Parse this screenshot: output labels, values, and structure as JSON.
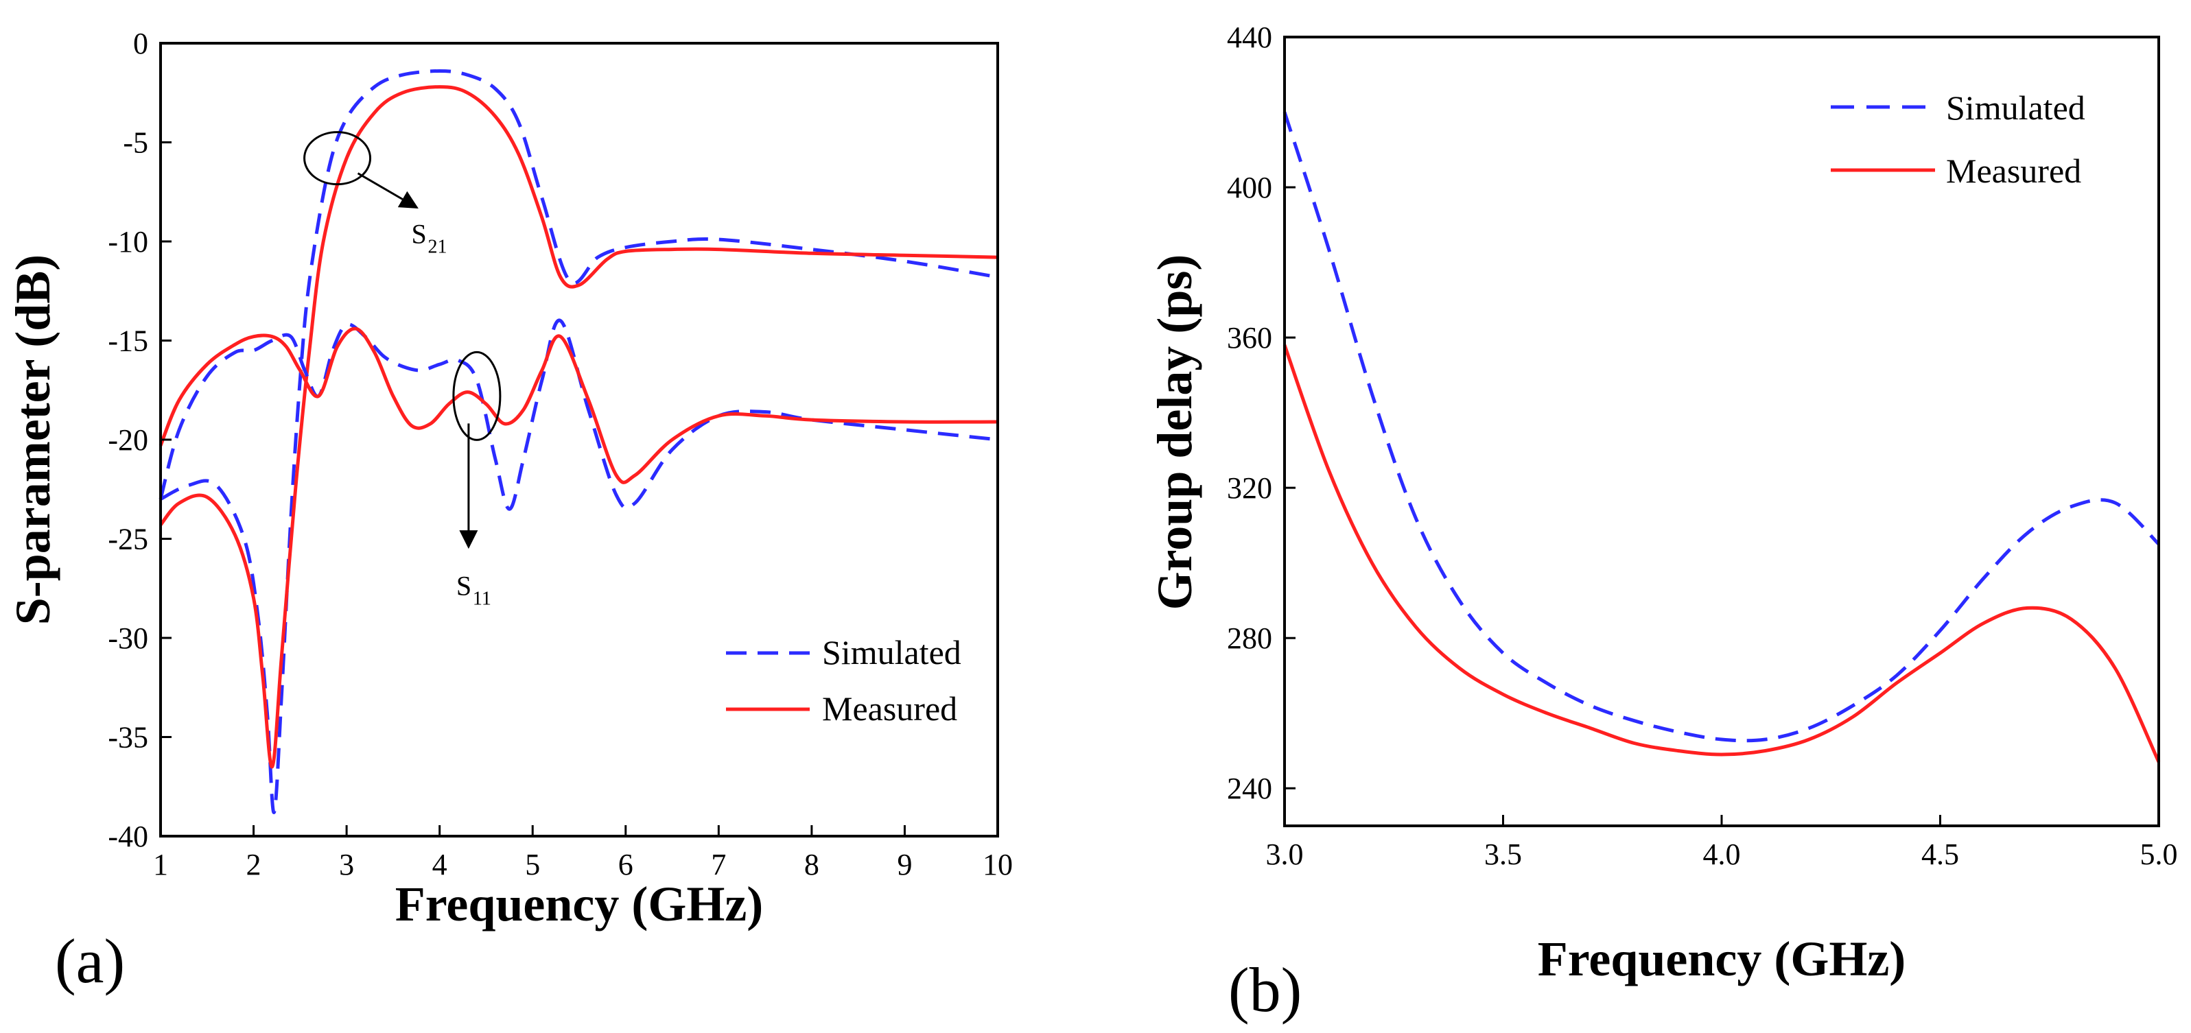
{
  "chart_data": [
    {
      "panel_label": "(a)",
      "type": "line",
      "xlabel": "Frequency (GHz)",
      "ylabel": "S-parameter (dB)",
      "xlim": [
        1,
        10
      ],
      "ylim": [
        -40,
        0
      ],
      "x_ticks": [
        1,
        2,
        3,
        4,
        5,
        6,
        7,
        8,
        9,
        10
      ],
      "y_ticks": [
        0,
        -5,
        -10,
        -15,
        -20,
        -25,
        -30,
        -35,
        -40
      ],
      "legend": {
        "position": "lower-right",
        "entries": [
          "Simulated",
          "Measured"
        ]
      },
      "annotations": [
        {
          "label": "S",
          "sub": "21",
          "target": [
            2.9,
            -5.8
          ]
        },
        {
          "label": "S",
          "sub": "11",
          "target": [
            4.4,
            -17.8
          ]
        }
      ],
      "series": [
        {
          "name": "Simulated S21",
          "style": "dashed",
          "color": "#2b2bff",
          "x": [
            1.0,
            1.3,
            1.6,
            1.9,
            2.05,
            2.15,
            2.22,
            2.3,
            2.4,
            2.5,
            2.6,
            2.8,
            3.0,
            3.3,
            3.6,
            4.0,
            4.3,
            4.6,
            4.85,
            5.1,
            5.4,
            5.7,
            6.0,
            6.5,
            7.0,
            8.0,
            9.0,
            10.0
          ],
          "y": [
            -23.0,
            -22.3,
            -22.3,
            -25.0,
            -29.0,
            -34.0,
            -38.8,
            -33.0,
            -24.0,
            -17.0,
            -12.0,
            -6.5,
            -3.8,
            -2.2,
            -1.6,
            -1.4,
            -1.6,
            -2.3,
            -4.0,
            -7.8,
            -12.0,
            -10.8,
            -10.3,
            -10.0,
            -9.9,
            -10.4,
            -11.0,
            -11.8
          ]
        },
        {
          "name": "Measured S21",
          "style": "solid",
          "color": "#ff2020",
          "x": [
            1.0,
            1.2,
            1.5,
            1.8,
            2.0,
            2.1,
            2.2,
            2.3,
            2.45,
            2.6,
            2.75,
            3.0,
            3.3,
            3.6,
            4.0,
            4.3,
            4.6,
            4.85,
            5.1,
            5.3,
            5.5,
            5.8,
            6.0,
            6.5,
            7.0,
            8.0,
            9.0,
            10.0
          ],
          "y": [
            -24.3,
            -23.2,
            -22.9,
            -24.8,
            -28.0,
            -32.0,
            -36.5,
            -31.0,
            -22.5,
            -15.5,
            -10.0,
            -5.8,
            -3.5,
            -2.5,
            -2.2,
            -2.5,
            -3.7,
            -5.6,
            -8.8,
            -11.8,
            -12.2,
            -10.9,
            -10.5,
            -10.4,
            -10.4,
            -10.6,
            -10.7,
            -10.8
          ]
        },
        {
          "name": "Simulated S11",
          "style": "dashed",
          "color": "#2b2bff",
          "x": [
            1.0,
            1.2,
            1.5,
            1.8,
            2.0,
            2.2,
            2.4,
            2.55,
            2.7,
            2.85,
            3.0,
            3.2,
            3.4,
            3.6,
            3.8,
            4.0,
            4.2,
            4.4,
            4.6,
            4.75,
            4.9,
            5.1,
            5.3,
            5.6,
            5.9,
            6.1,
            6.5,
            7.0,
            7.5,
            8.0,
            9.0,
            10.0
          ],
          "y": [
            -23.0,
            -19.5,
            -16.8,
            -15.6,
            -15.5,
            -15.0,
            -14.8,
            -16.5,
            -17.8,
            -15.5,
            -14.2,
            -14.8,
            -15.8,
            -16.3,
            -16.5,
            -16.2,
            -16.0,
            -17.0,
            -21.0,
            -23.5,
            -21.0,
            -17.0,
            -14.0,
            -18.5,
            -22.8,
            -23.2,
            -20.5,
            -18.8,
            -18.6,
            -19.0,
            -19.5,
            -20.0
          ]
        },
        {
          "name": "Measured S11",
          "style": "solid",
          "color": "#ff2020",
          "x": [
            1.0,
            1.2,
            1.5,
            1.8,
            2.0,
            2.2,
            2.35,
            2.5,
            2.7,
            2.9,
            3.1,
            3.3,
            3.5,
            3.7,
            3.9,
            4.1,
            4.3,
            4.5,
            4.7,
            4.9,
            5.1,
            5.3,
            5.6,
            5.9,
            6.1,
            6.5,
            7.0,
            7.5,
            8.0,
            9.0,
            10.0
          ],
          "y": [
            -20.3,
            -18.0,
            -16.2,
            -15.2,
            -14.8,
            -14.8,
            -15.3,
            -16.5,
            -17.8,
            -15.3,
            -14.4,
            -15.6,
            -17.8,
            -19.3,
            -19.2,
            -18.2,
            -17.6,
            -18.2,
            -19.2,
            -18.5,
            -16.5,
            -14.8,
            -18.0,
            -21.8,
            -21.8,
            -20.0,
            -18.8,
            -18.8,
            -19.0,
            -19.1,
            -19.1
          ]
        }
      ]
    },
    {
      "panel_label": "(b)",
      "type": "line",
      "xlabel": "Frequency (GHz)",
      "ylabel": "Group delay (ps)",
      "xlim": [
        3.0,
        5.0
      ],
      "ylim": [
        230,
        440
      ],
      "x_ticks": [
        "3.0",
        "3.5",
        "4.0",
        "4.5",
        "5.0"
      ],
      "y_ticks": [
        240,
        280,
        320,
        360,
        400,
        440
      ],
      "legend": {
        "position": "top-right",
        "entries": [
          "Simulated",
          "Measured"
        ]
      },
      "series": [
        {
          "name": "Simulated",
          "style": "dashed",
          "color": "#2b2bff",
          "x": [
            3.0,
            3.1,
            3.2,
            3.3,
            3.4,
            3.5,
            3.6,
            3.7,
            3.8,
            3.9,
            4.0,
            4.1,
            4.2,
            4.3,
            4.4,
            4.5,
            4.6,
            4.7,
            4.8,
            4.9,
            5.0
          ],
          "y": [
            420,
            384,
            345,
            312,
            290,
            276,
            268,
            262,
            258,
            255,
            253,
            253,
            256,
            262,
            270,
            282,
            296,
            308,
            315,
            316,
            305
          ]
        },
        {
          "name": "Measured",
          "style": "solid",
          "color": "#ff2020",
          "x": [
            3.0,
            3.1,
            3.2,
            3.3,
            3.4,
            3.5,
            3.6,
            3.7,
            3.8,
            3.9,
            4.0,
            4.1,
            4.2,
            4.3,
            4.4,
            4.5,
            4.6,
            4.7,
            4.8,
            4.9,
            5.0
          ],
          "y": [
            358,
            325,
            300,
            283,
            272,
            265,
            260,
            256,
            252,
            250,
            249,
            250,
            253,
            259,
            268,
            276,
            284,
            288,
            285,
            272,
            247
          ]
        }
      ]
    }
  ]
}
